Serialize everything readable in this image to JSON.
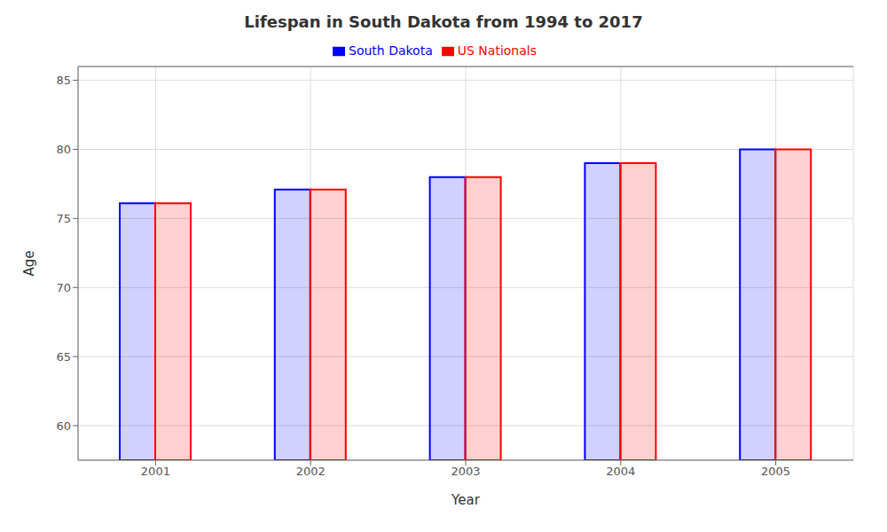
{
  "chart_data": {
    "type": "bar",
    "title": "Lifespan in South Dakota from 1994 to 2017",
    "x_label": "Year",
    "y_label": "Age",
    "categories": [
      "2001",
      "2002",
      "2003",
      "2004",
      "2005"
    ],
    "series": [
      {
        "name": "South Dakota",
        "color": "#0000ff",
        "values": [
          76.1,
          77.1,
          78.0,
          79.0,
          80.0
        ]
      },
      {
        "name": "US Nationals",
        "color": "#ff0000",
        "values": [
          76.1,
          77.1,
          78.0,
          79.0,
          80.0
        ]
      }
    ],
    "ylim": [
      57.5,
      86
    ],
    "yticks": [
      60,
      65,
      70,
      75,
      80,
      85
    ],
    "grid": true,
    "legend": "top"
  }
}
